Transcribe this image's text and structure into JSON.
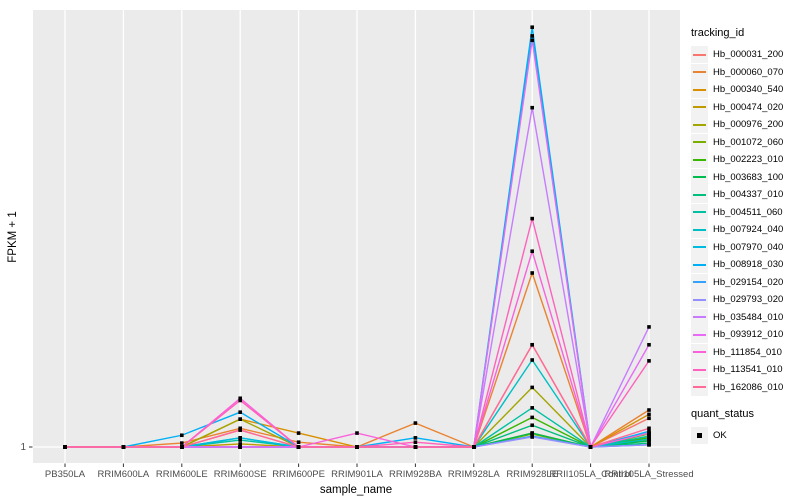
{
  "chart_data": {
    "type": "line",
    "title": "",
    "xlabel": "sample_name",
    "ylabel": "FPKM + 1",
    "categories": [
      "PB350LA",
      "RRIM600LA",
      "RRIM600LE",
      "RRIM600SE",
      "RRIM600PE",
      "RRIM901LA",
      "RRIM928BA",
      "RRIM928LA",
      "RRIM928LE",
      "RRII105LA_Control",
      "RRII105LA_Stressed"
    ],
    "y_tick_labels": [
      "1"
    ],
    "y_note": "only the tick '1' is labeled on the y axis; series values below are relative heights above the y=1 baseline (0 = baseline gridline at 1, 1 = top of panel)",
    "panel_background": "#EBEBEB",
    "gridline_color": "#FFFFFF",
    "point_shape": "filled-square",
    "point_color": "#000000",
    "series": [
      {
        "name": "Hb_000031_200",
        "color": "#F8766D",
        "values": [
          0,
          0,
          0,
          0.039,
          0,
          0,
          0,
          0,
          0.235,
          0,
          0.066
        ]
      },
      {
        "name": "Hb_000060_070",
        "color": "#EA8331",
        "values": [
          0,
          0,
          0.009,
          0.043,
          0.011,
          0,
          0.055,
          0,
          0.4,
          0,
          0.085
        ]
      },
      {
        "name": "Hb_000340_540",
        "color": "#D89000",
        "values": [
          0,
          0,
          0,
          0.064,
          0.032,
          0,
          0,
          0,
          0.032,
          0,
          0.075
        ]
      },
      {
        "name": "Hb_000474_020",
        "color": "#C09B00",
        "values": [
          0,
          0,
          0,
          0.007,
          0,
          0,
          0,
          0,
          0.03,
          0,
          0.023
        ]
      },
      {
        "name": "Hb_000976_200",
        "color": "#A3A500",
        "values": [
          0,
          0,
          0,
          0.064,
          0,
          0,
          0,
          0,
          0.137,
          0,
          0.016
        ]
      },
      {
        "name": "Hb_001072_060",
        "color": "#7CAE00",
        "values": [
          0,
          0,
          0,
          0,
          0,
          0,
          0,
          0,
          0.03,
          0,
          0.03
        ]
      },
      {
        "name": "Hb_002223_010",
        "color": "#39B600",
        "values": [
          0,
          0,
          0,
          0,
          0,
          0,
          0,
          0,
          0.068,
          0,
          0.021
        ]
      },
      {
        "name": "Hb_003683_100",
        "color": "#00BB4E",
        "values": [
          0,
          0,
          0,
          0,
          0,
          0,
          0,
          0,
          0.032,
          0,
          0.014
        ]
      },
      {
        "name": "Hb_004337_010",
        "color": "#00BF7D",
        "values": [
          0,
          0,
          0,
          0,
          0,
          0,
          0,
          0,
          0.05,
          0,
          0.009
        ]
      },
      {
        "name": "Hb_004511_060",
        "color": "#00C1A3",
        "values": [
          0,
          0,
          0,
          0.016,
          0,
          0,
          0,
          0,
          0.09,
          0,
          0.025
        ]
      },
      {
        "name": "Hb_007924_040",
        "color": "#00BFC4",
        "values": [
          0,
          0,
          0,
          0.021,
          0,
          0,
          0,
          0,
          0.2,
          0,
          0.018
        ]
      },
      {
        "name": "Hb_007970_040",
        "color": "#00BAE0",
        "values": [
          0,
          0,
          0,
          0.021,
          0,
          0,
          0,
          0,
          0.945,
          0,
          0.032
        ]
      },
      {
        "name": "Hb_008918_030",
        "color": "#00B0F6",
        "values": [
          0,
          0,
          0.027,
          0.08,
          0,
          0,
          0.021,
          0,
          0.965,
          0,
          0.036
        ]
      },
      {
        "name": "Hb_029154_020",
        "color": "#35A2FF",
        "values": [
          0,
          0,
          0,
          0,
          0,
          0,
          0,
          0,
          0.025,
          0,
          0.005
        ]
      },
      {
        "name": "Hb_029793_020",
        "color": "#9590FF",
        "values": [
          0,
          0,
          0,
          0,
          0,
          0,
          0,
          0,
          0.023,
          0,
          0.005
        ]
      },
      {
        "name": "Hb_035484_010",
        "color": "#C77CFF",
        "values": [
          0,
          0,
          0,
          0,
          0,
          0,
          0,
          0,
          0.78,
          0,
          0.276
        ]
      },
      {
        "name": "Hb_093912_010",
        "color": "#E76BF3",
        "values": [
          0,
          0,
          0,
          0,
          0,
          0,
          0,
          0,
          0.935,
          0,
          0.235
        ]
      },
      {
        "name": "Hb_111854_010",
        "color": "#FA62DB",
        "values": [
          0,
          0,
          0,
          0.112,
          0,
          0.032,
          0,
          0,
          0.45,
          0,
          0.032
        ]
      },
      {
        "name": "Hb_113541_010",
        "color": "#FF62BC",
        "values": [
          0,
          0,
          0,
          0.107,
          0,
          0,
          0.011,
          0,
          0.525,
          0,
          0.198
        ]
      },
      {
        "name": "Hb_162086_010",
        "color": "#FF6A98",
        "values": [
          0,
          0,
          0,
          0.039,
          0,
          0,
          0,
          0,
          0.235,
          0,
          0.043
        ]
      }
    ],
    "legend": {
      "color_title": "tracking_id",
      "shape_title": "quant_status",
      "shape_entries": [
        "OK"
      ],
      "key_background": "#F2F2F2"
    }
  }
}
